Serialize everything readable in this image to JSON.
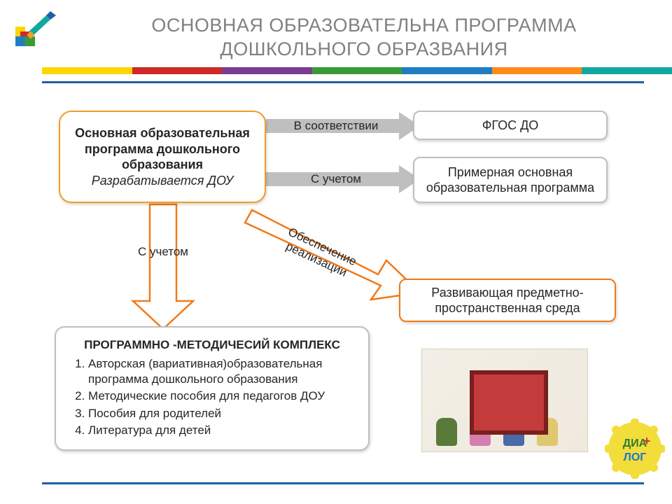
{
  "title": "ОСНОВНАЯ ОБРАЗОВАТЕЛЬНА ПРОГРАММА\nДОШКОЛЬНОГО ОБРАЗВАНИЯ",
  "colors": {
    "title": "#808080",
    "rule": "#1f5fa8",
    "orange_border": "#f59b23",
    "orange_arrow": "#f07a1a",
    "gray_border": "#bfbfbf",
    "gray_arrow": "#bfbfbf",
    "text": "#262626",
    "stripe": [
      "#fdd600",
      "#cf2a27",
      "#7a3b93",
      "#3a9b35",
      "#1f7ec2",
      "#ff8c1a",
      "#13a89e"
    ]
  },
  "nodes": {
    "main": {
      "text": "Основная образовательная программа дошкольного образования",
      "sub": "Разрабатывается ДОУ"
    },
    "fgos": "ФГОС ДО",
    "approx": "Примерная основная образовательная программа",
    "env": "Развивающая предметно-пространственная среда",
    "complex": {
      "heading": "ПРОГРАММНО -МЕТОДИЧЕСИЙ КОМПЛЕКС",
      "items": [
        "Авторская (вариативная)образовательная программа дошкольного образования",
        "Методические пособия для педагогов ДОУ",
        "Пособия для родителей",
        "Литература для детей"
      ]
    }
  },
  "arrows": {
    "a1": {
      "label": "В соответствии"
    },
    "a2": {
      "label": "С учетом"
    },
    "a3": {
      "label": "Обеспечение\nреализации"
    },
    "a4": {
      "label": "С учетом"
    }
  },
  "badge_text": "ДИА+ЛОГ"
}
